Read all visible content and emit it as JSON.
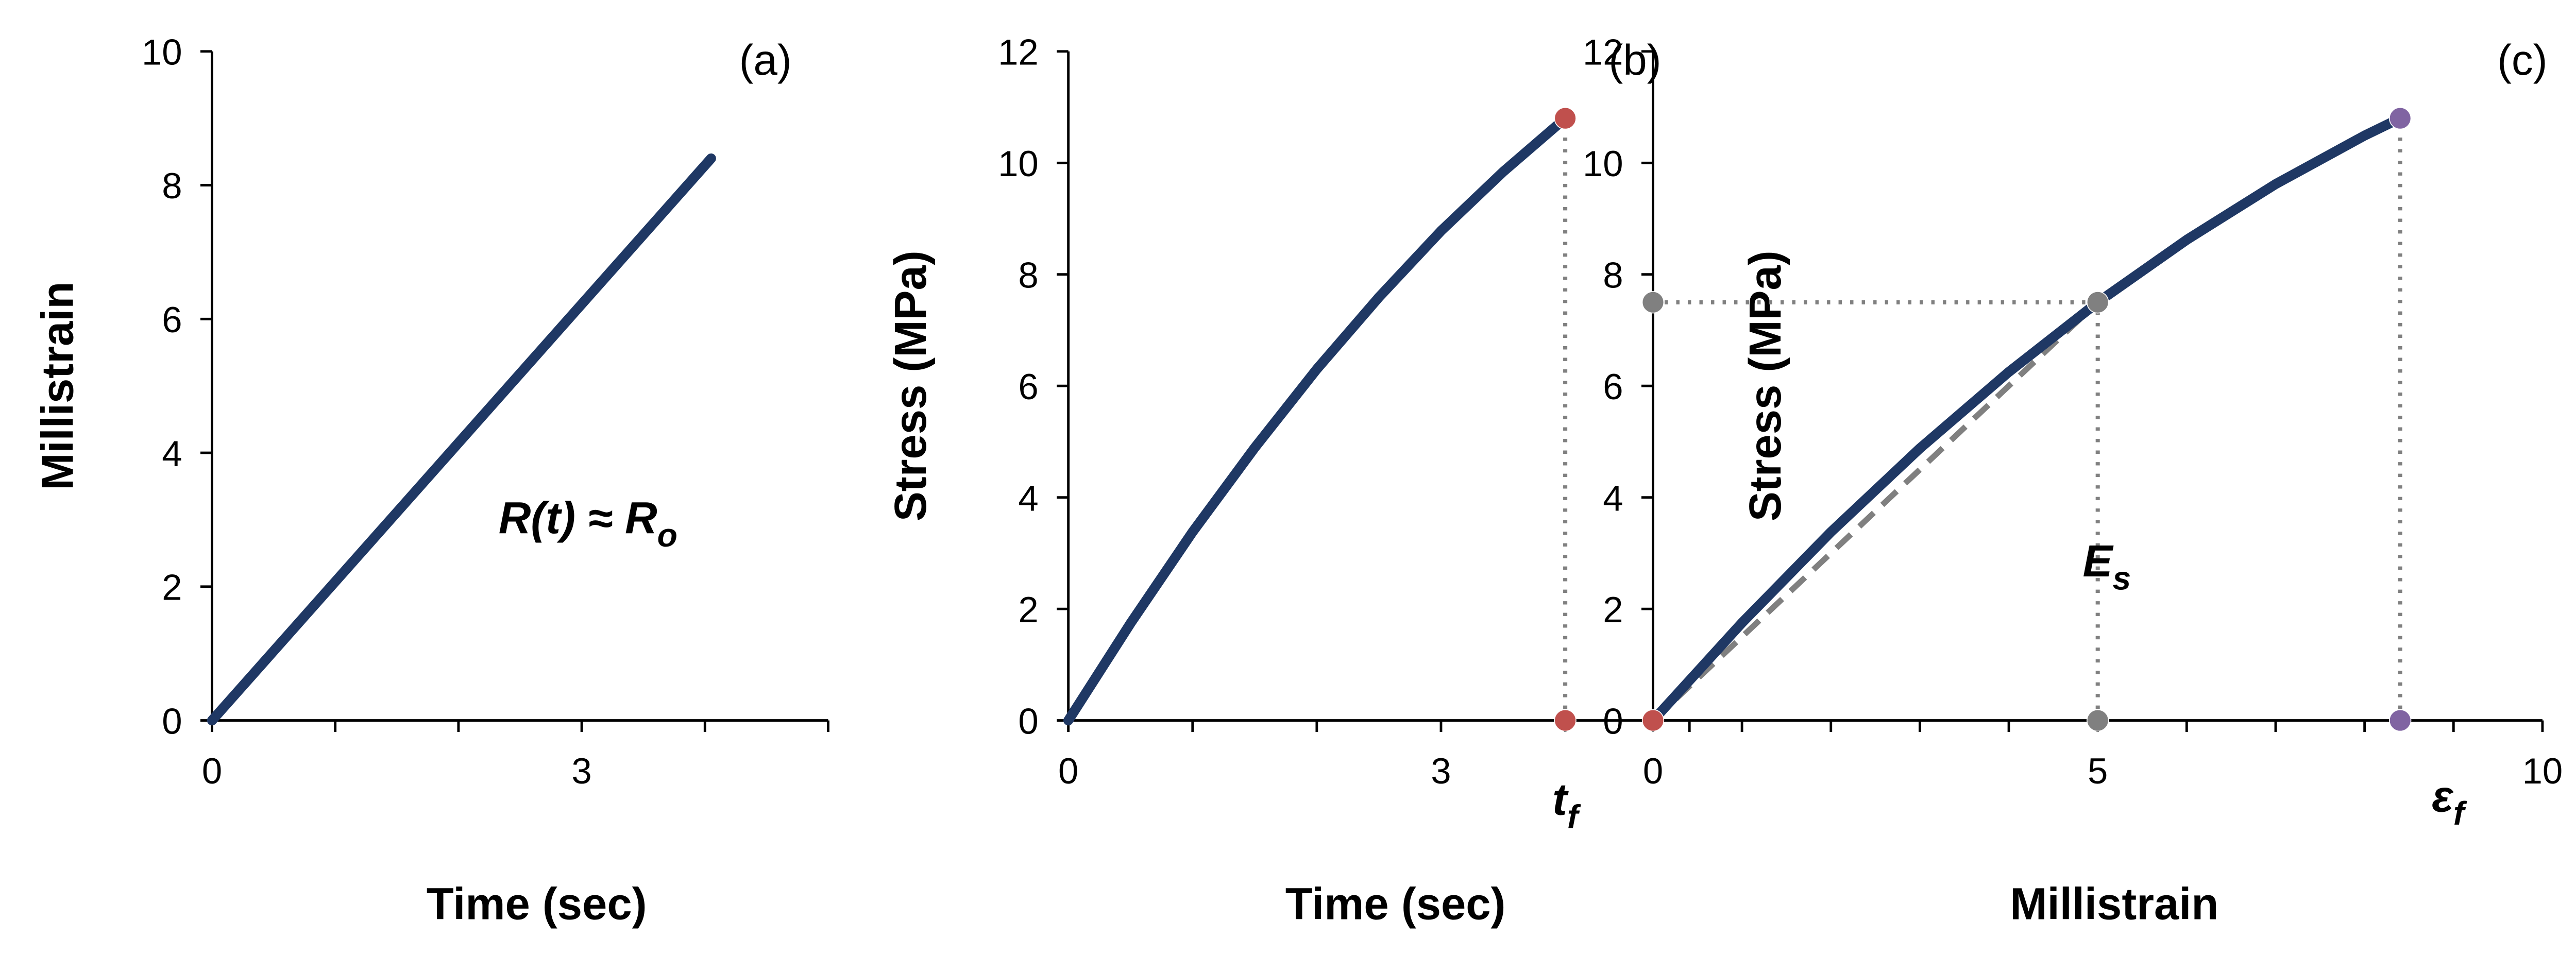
{
  "chart_data": [
    {
      "type": "line",
      "title": "(a)",
      "xlabel": "Time (sec)",
      "ylabel": "Millistrain",
      "xlim": [
        0,
        5
      ],
      "xticks": [
        0,
        3
      ],
      "xminor": [
        1,
        2,
        4,
        5
      ],
      "ylim": [
        0,
        10
      ],
      "yticks": [
        0,
        2,
        4,
        6,
        8,
        10
      ],
      "x": [
        0,
        4.05
      ],
      "values": [
        0,
        8.4
      ],
      "color": "#1f3864",
      "annotations": [
        {
          "text": "R(t) ≈ R",
          "sub": "o"
        }
      ]
    },
    {
      "type": "line",
      "title": "(b)",
      "xlabel": "Time (sec)",
      "ylabel": "Stress (MPa)",
      "xlim": [
        0,
        5
      ],
      "xticks": [
        0,
        3
      ],
      "xminor": [
        1,
        2,
        4,
        5
      ],
      "ylim": [
        0,
        12
      ],
      "yticks": [
        0,
        2,
        4,
        6,
        8,
        10,
        12
      ],
      "x": [
        0,
        0.5,
        1,
        1.5,
        2,
        2.5,
        3,
        3.5,
        4
      ],
      "values": [
        0,
        1.74,
        3.38,
        4.89,
        6.3,
        7.59,
        8.78,
        9.84,
        10.8
      ],
      "color": "#1f3864",
      "points": {
        "x": [
          4,
          4
        ],
        "y": [
          10.8,
          0
        ],
        "colors": [
          "#c0504d",
          "#c0504d"
        ]
      },
      "guides": [
        {
          "style": "dotted",
          "x": [
            4,
            4
          ],
          "y": [
            0,
            10.8
          ]
        }
      ],
      "annotations": [
        {
          "text": "t",
          "sub": "f"
        }
      ]
    },
    {
      "type": "line",
      "title": "(c)",
      "xlabel": "Millistrain",
      "ylabel": "Stress (MPa)",
      "xlim": [
        0,
        10
      ],
      "xticks": [
        0,
        5,
        10
      ],
      "xminor": [
        1,
        2,
        3,
        4,
        6,
        7,
        8,
        9
      ],
      "ylim": [
        0,
        12
      ],
      "yticks": [
        0,
        2,
        4,
        6,
        8,
        10,
        12
      ],
      "x": [
        0,
        1,
        2,
        3,
        4,
        5,
        6,
        7,
        8,
        8.4
      ],
      "values": [
        0,
        1.75,
        3.38,
        4.88,
        6.25,
        7.5,
        8.62,
        9.62,
        10.49,
        10.8
      ],
      "color": "#1f3864",
      "points": {
        "x": [
          0,
          0,
          5,
          5,
          8.4,
          8.4
        ],
        "y": [
          0,
          7.5,
          7.5,
          0,
          10.8,
          0
        ],
        "colors": [
          "#c0504d",
          "#808080",
          "#808080",
          "#808080",
          "#8064a2",
          "#8064a2"
        ]
      },
      "guides": [
        {
          "style": "dotted",
          "x": [
            0,
            5
          ],
          "y": [
            7.5,
            7.5
          ]
        },
        {
          "style": "dotted",
          "x": [
            5,
            5
          ],
          "y": [
            0,
            7.5
          ]
        },
        {
          "style": "dotted",
          "x": [
            8.4,
            8.4
          ],
          "y": [
            0,
            10.8
          ]
        },
        {
          "style": "dashed",
          "x": [
            0,
            5
          ],
          "y": [
            0,
            7.5
          ]
        }
      ],
      "annotations": [
        {
          "text": "E",
          "sub": "s"
        },
        {
          "text": "ε",
          "sub": "f"
        }
      ]
    }
  ]
}
